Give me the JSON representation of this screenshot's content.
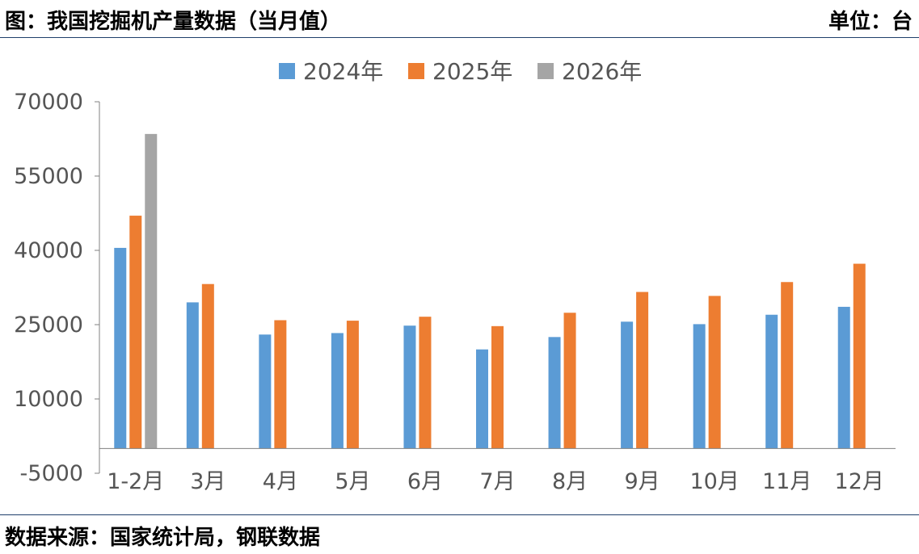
{
  "header": {
    "title": "图：我国挖掘机产量数据（当月值）",
    "unit": "单位：台"
  },
  "footer": {
    "source": "数据来源：国家统计局，钢联数据"
  },
  "chart_data": {
    "type": "bar",
    "categories": [
      "1-2月",
      "3月",
      "4月",
      "5月",
      "6月",
      "7月",
      "8月",
      "9月",
      "10月",
      "11月",
      "12月"
    ],
    "series": [
      {
        "name": "2024年",
        "color": "#5b9bd5",
        "values": [
          40500,
          29500,
          23000,
          23300,
          24800,
          20000,
          22500,
          25600,
          25100,
          27000,
          28600
        ]
      },
      {
        "name": "2025年",
        "color": "#ed7d31",
        "values": [
          47000,
          33200,
          25900,
          25800,
          26600,
          24700,
          27400,
          31600,
          30800,
          33600,
          37300
        ]
      },
      {
        "name": "2026年",
        "color": "#a5a5a5",
        "values": [
          63500,
          null,
          null,
          null,
          null,
          null,
          null,
          null,
          null,
          null,
          null
        ]
      }
    ],
    "yticks": [
      70000,
      55000,
      40000,
      25000,
      10000,
      -5000
    ],
    "ylim": [
      -5000,
      70000
    ],
    "legend": "top-center",
    "grid": false
  }
}
